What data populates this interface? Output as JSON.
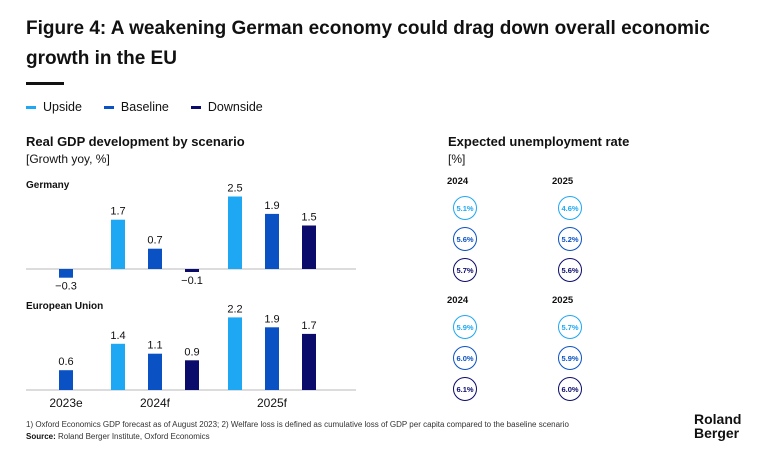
{
  "title": "Figure 4: A weakening German economy could drag down overall economic growth in the EU",
  "legend": [
    {
      "label": "Upside",
      "color": "#1EA7F2"
    },
    {
      "label": "Baseline",
      "color": "#0A52C4"
    },
    {
      "label": "Downside",
      "color": "#0B0B6B"
    }
  ],
  "left_heading": "Real GDP development by scenario",
  "left_unit": "[Growth yoy, %]",
  "right_heading": "Expected unemployment rate",
  "right_unit": "[%]",
  "chart_data": [
    {
      "type": "bar",
      "title": "Germany",
      "categories": [
        "2023e",
        "2024f",
        "2025f"
      ],
      "series": [
        {
          "name": "Upside",
          "values": [
            null,
            1.7,
            2.5
          ]
        },
        {
          "name": "Baseline",
          "values": [
            -0.3,
            0.7,
            1.9
          ]
        },
        {
          "name": "Downside",
          "values": [
            null,
            -0.1,
            1.5
          ]
        }
      ],
      "ylabel": "Growth yoy, %"
    },
    {
      "type": "bar",
      "title": "European Union",
      "categories": [
        "2023e",
        "2024f",
        "2025f"
      ],
      "series": [
        {
          "name": "Upside",
          "values": [
            null,
            1.4,
            2.2
          ]
        },
        {
          "name": "Baseline",
          "values": [
            0.6,
            1.1,
            1.9
          ]
        },
        {
          "name": "Downside",
          "values": [
            null,
            0.9,
            1.7
          ]
        }
      ],
      "ylabel": "Growth yoy, %"
    }
  ],
  "unemployment": [
    {
      "years": [
        "2024",
        "2025"
      ],
      "rows": [
        [
          "5.1%",
          "4.6%"
        ],
        [
          "5.6%",
          "5.2%"
        ],
        [
          "5.7%",
          "5.6%"
        ]
      ]
    },
    {
      "years": [
        "2024",
        "2025"
      ],
      "rows": [
        [
          "5.9%",
          "5.7%"
        ],
        [
          "6.0%",
          "5.9%"
        ],
        [
          "6.1%",
          "6.0%"
        ]
      ]
    }
  ],
  "footnote": "1) Oxford Economics GDP forecast as of August 2023; 2) Welfare loss is defined as cumulative loss of GDP per capita compared to the baseline scenario",
  "source_label": "Source:",
  "source_text": " Roland Berger Institute, Oxford Economics",
  "logo_line1": "Roland",
  "logo_line2": "Berger"
}
